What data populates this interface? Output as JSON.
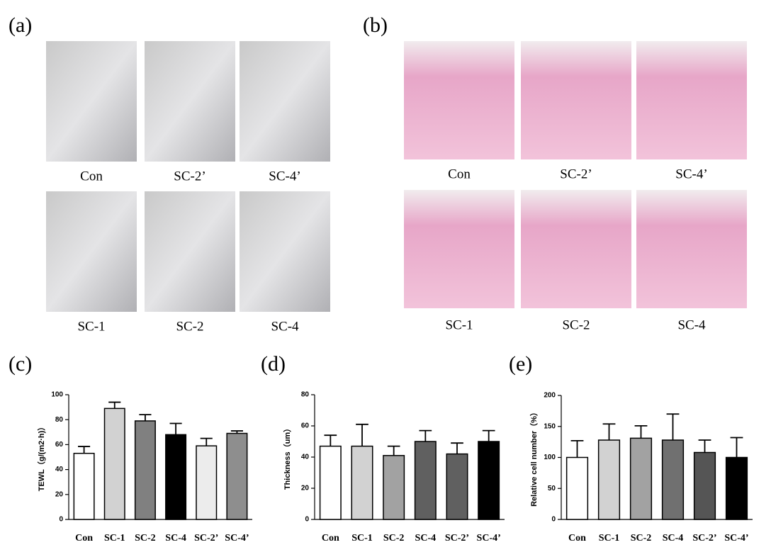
{
  "panel_a": {
    "label": "(a)",
    "captions": [
      [
        "Con",
        "SC-2’",
        "SC-4’"
      ],
      [
        "SC-1",
        "SC-2",
        "SC-4"
      ]
    ]
  },
  "panel_b": {
    "label": "(b)",
    "captions": [
      [
        "Con",
        "SC-2’",
        "SC-4’"
      ],
      [
        "SC-1",
        "SC-2",
        "SC-4"
      ]
    ]
  },
  "chart_data": [
    {
      "type": "bar",
      "panel_label": "(c)",
      "y_label": "TEWL（g/(m2·h)）",
      "categories": [
        "Con",
        "SC-1",
        "SC-2",
        "SC-4",
        "SC-2’",
        "SC-4’"
      ],
      "values": [
        53,
        89,
        79,
        68,
        59,
        69
      ],
      "errors": [
        5.5,
        5,
        5,
        9,
        6,
        2
      ],
      "colors": [
        "#ffffff",
        "#d2d2d2",
        "#808080",
        "#000000",
        "#ececec",
        "#8e8e8e"
      ],
      "ylim": [
        0,
        100
      ],
      "yticks": [
        0,
        20,
        40,
        60,
        80,
        100
      ]
    },
    {
      "type": "bar",
      "panel_label": "(d)",
      "y_label": "Thickness（um）",
      "categories": [
        "Con",
        "SC-1",
        "SC-2",
        "SC-4",
        "SC-2’",
        "SC-4’"
      ],
      "values": [
        47,
        47,
        41,
        50,
        42,
        50
      ],
      "errors": [
        7,
        14,
        6,
        7,
        7,
        7
      ],
      "colors": [
        "#ffffff",
        "#d2d2d2",
        "#a2a2a2",
        "#606060",
        "#606060",
        "#000000"
      ],
      "ylim": [
        0,
        80
      ],
      "yticks": [
        0,
        20,
        40,
        60,
        80
      ]
    },
    {
      "type": "bar",
      "panel_label": "(e)",
      "y_label": "Relative cell number（%）",
      "categories": [
        "Con",
        "SC-1",
        "SC-2",
        "SC-4",
        "SC-2’",
        "SC-4’"
      ],
      "values": [
        100,
        128,
        131,
        128,
        108,
        100
      ],
      "errors": [
        27,
        26,
        20,
        42,
        20,
        32
      ],
      "colors": [
        "#ffffff",
        "#d2d2d2",
        "#a2a2a2",
        "#707070",
        "#555555",
        "#000000"
      ],
      "ylim": [
        0,
        200
      ],
      "yticks": [
        0,
        50,
        100,
        150,
        200
      ]
    }
  ]
}
